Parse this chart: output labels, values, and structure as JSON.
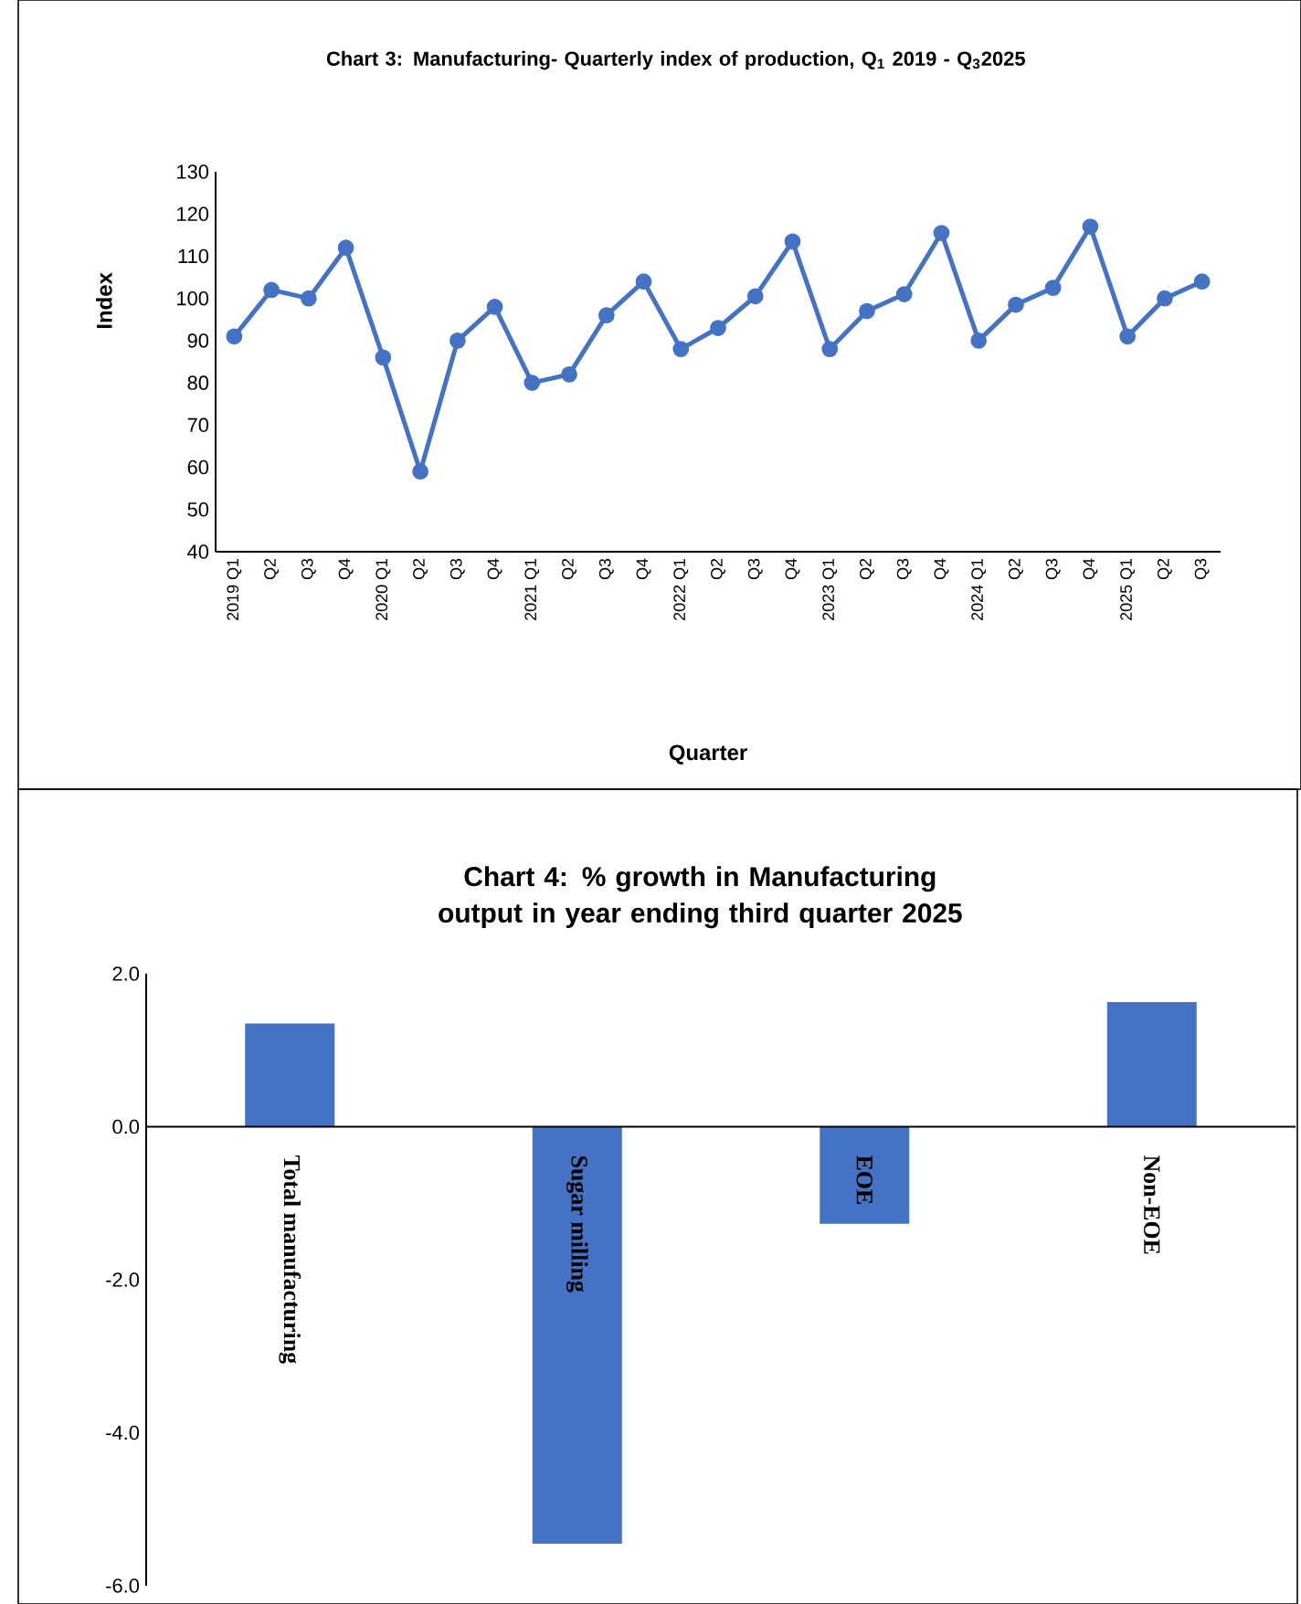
{
  "chart_data": [
    {
      "type": "line",
      "title": "Chart 3: Manufacturing- Quarterly index of production,  Q$_{1}$ 2019 - Q$_{3}$2025",
      "xlabel": "Quarter",
      "ylabel": "Index",
      "categories": [
        "2019 Q1",
        "Q2",
        "Q3",
        "Q4",
        "2020 Q1",
        "Q2",
        "Q3",
        "Q4",
        "2021 Q1",
        "Q2",
        "Q3",
        "Q4",
        "2022 Q1",
        "Q2",
        "Q3",
        "Q4",
        "2023 Q1",
        "Q2",
        "Q3",
        "Q4",
        "2024 Q1",
        "Q2",
        "Q3",
        "Q4",
        "2025 Q1",
        "Q2",
        "Q3"
      ],
      "values": [
        91,
        102,
        100,
        112,
        86,
        59,
        90,
        98,
        80,
        82,
        96,
        104,
        88,
        93,
        100.5,
        113.5,
        88,
        97,
        101,
        115.5,
        90,
        98.5,
        102.5,
        117,
        91,
        100,
        104
      ],
      "color": "#4472c4",
      "marker": "circle",
      "ylim": [
        40,
        130
      ],
      "yticks": [
        40,
        50,
        60,
        70,
        80,
        90,
        100,
        110,
        120,
        130
      ]
    },
    {
      "type": "bar",
      "title": "Chart 4: % growth in Manufacturing output in year ending third quarter 2025",
      "categories": [
        "Total manufacturing",
        "Sugar milling",
        "EOE",
        "Non-EOE"
      ],
      "values": [
        1.35,
        -5.45,
        -1.27,
        1.63
      ],
      "color": "#4472c4",
      "ylim": [
        -6,
        2
      ],
      "yticks": [
        {
          "value": -6,
          "label": "-6.0"
        },
        {
          "value": -4,
          "label": "-4.0"
        },
        {
          "value": -2,
          "label": "-2.0"
        },
        {
          "value": 0,
          "label": "0.0"
        },
        {
          "value": 2,
          "label": "2.0"
        }
      ]
    }
  ]
}
